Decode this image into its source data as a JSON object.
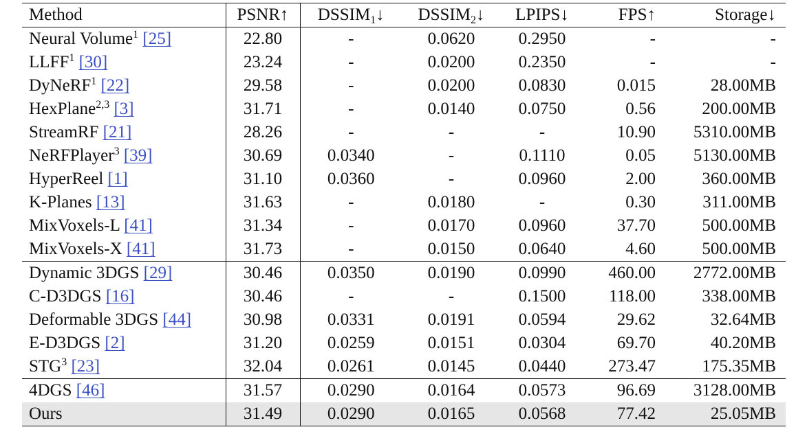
{
  "header": {
    "method": "Method",
    "psnr": "PSNR↑",
    "dssim1_main": "DSSIM",
    "dssim1_sub": "1",
    "dssim2_main": "DSSIM",
    "dssim2_sub": "2",
    "dssim_arrow": "↓",
    "lpips": "LPIPS↓",
    "fps": "FPS↑",
    "storage": "Storage↓"
  },
  "rows": [
    {
      "name": "Neural Volume",
      "sup": "1",
      "cite": "[25]",
      "psnr": "22.80",
      "dssim1": "-",
      "dssim2": "0.0620",
      "lpips": "0.2950",
      "fps": "-",
      "storage": "-"
    },
    {
      "name": "LLFF",
      "sup": "1",
      "cite": "[30]",
      "psnr": "23.24",
      "dssim1": "-",
      "dssim2": "0.0200",
      "lpips": "0.2350",
      "fps": "-",
      "storage": "-"
    },
    {
      "name": "DyNeRF",
      "sup": "1",
      "cite": "[22]",
      "psnr": "29.58",
      "dssim1": "-",
      "dssim2": "0.0200",
      "lpips": "0.0830",
      "fps": "0.015",
      "storage": "28.00MB"
    },
    {
      "name": "HexPlane",
      "sup": "2,3",
      "cite": "[3]",
      "psnr": "31.71",
      "dssim1": "-",
      "dssim2": "0.0140",
      "lpips": "0.0750",
      "fps": "0.56",
      "storage": "200.00MB"
    },
    {
      "name": "StreamRF",
      "sup": "",
      "cite": "[21]",
      "psnr": "28.26",
      "dssim1": "-",
      "dssim2": "-",
      "lpips": "-",
      "fps": "10.90",
      "storage": "5310.00MB"
    },
    {
      "name": "NeRFPlayer",
      "sup": "3",
      "cite": "[39]",
      "psnr": "30.69",
      "dssim1": "0.0340",
      "dssim2": "-",
      "lpips": "0.1110",
      "fps": "0.05",
      "storage": "5130.00MB"
    },
    {
      "name": "HyperReel",
      "sup": "",
      "cite": "[1]",
      "psnr": "31.10",
      "dssim1": "0.0360",
      "dssim2": "-",
      "lpips": "0.0960",
      "fps": "2.00",
      "storage": "360.00MB"
    },
    {
      "name": "K-Planes",
      "sup": "",
      "cite": "[13]",
      "psnr": "31.63",
      "dssim1": "-",
      "dssim2": "0.0180",
      "lpips": "-",
      "fps": "0.30",
      "storage": "311.00MB"
    },
    {
      "name": "MixVoxels-L",
      "sup": "",
      "cite": "[41]",
      "psnr": "31.34",
      "dssim1": "-",
      "dssim2": "0.0170",
      "lpips": "0.0960",
      "fps": "37.70",
      "storage": "500.00MB"
    },
    {
      "name": "MixVoxels-X",
      "sup": "",
      "cite": "[41]",
      "psnr": "31.73",
      "dssim1": "-",
      "dssim2": "0.0150",
      "lpips": "0.0640",
      "fps": "4.60",
      "storage": "500.00MB"
    },
    {
      "name": "Dynamic 3DGS",
      "sup": "",
      "cite": "[29]",
      "psnr": "30.46",
      "dssim1": "0.0350",
      "dssim2": "0.0190",
      "lpips": "0.0990",
      "fps": "460.00",
      "storage": "2772.00MB",
      "group_start": true
    },
    {
      "name": "C-D3DGS",
      "sup": "",
      "cite": "[16]",
      "psnr": "30.46",
      "dssim1": "-",
      "dssim2": "-",
      "lpips": "0.1500",
      "fps": "118.00",
      "storage": "338.00MB"
    },
    {
      "name": "Deformable 3DGS",
      "sup": "",
      "cite": "[44]",
      "psnr": "30.98",
      "dssim1": "0.0331",
      "dssim2": "0.0191",
      "lpips": "0.0594",
      "fps": "29.62",
      "storage": "32.64MB"
    },
    {
      "name": "E-D3DGS",
      "sup": "",
      "cite": "[2]",
      "psnr": "31.20",
      "dssim1": "0.0259",
      "dssim2": "0.0151",
      "lpips": "0.0304",
      "fps": "69.70",
      "storage": "40.20MB"
    },
    {
      "name": "STG",
      "sup": "3",
      "cite": "[23]",
      "psnr": "32.04",
      "dssim1": "0.0261",
      "dssim2": "0.0145",
      "lpips": "0.0440",
      "fps": "273.47",
      "storage": "175.35MB"
    },
    {
      "name": "4DGS",
      "sup": "",
      "cite": "[46]",
      "psnr": "31.57",
      "dssim1": "0.0290",
      "dssim2": "0.0164",
      "lpips": "0.0573",
      "fps": "96.69",
      "storage": "3128.00MB",
      "group_start": true
    },
    {
      "name": "Ours",
      "sup": "",
      "cite": "",
      "psnr": "31.49",
      "dssim1": "0.0290",
      "dssim2": "0.0165",
      "lpips": "0.0568",
      "fps": "77.42",
      "storage": "25.05MB",
      "highlight": true
    }
  ],
  "colors": {
    "citation_link": "#3b4fc4",
    "highlight_row": "#e6e6e6",
    "rule": "#111111"
  }
}
